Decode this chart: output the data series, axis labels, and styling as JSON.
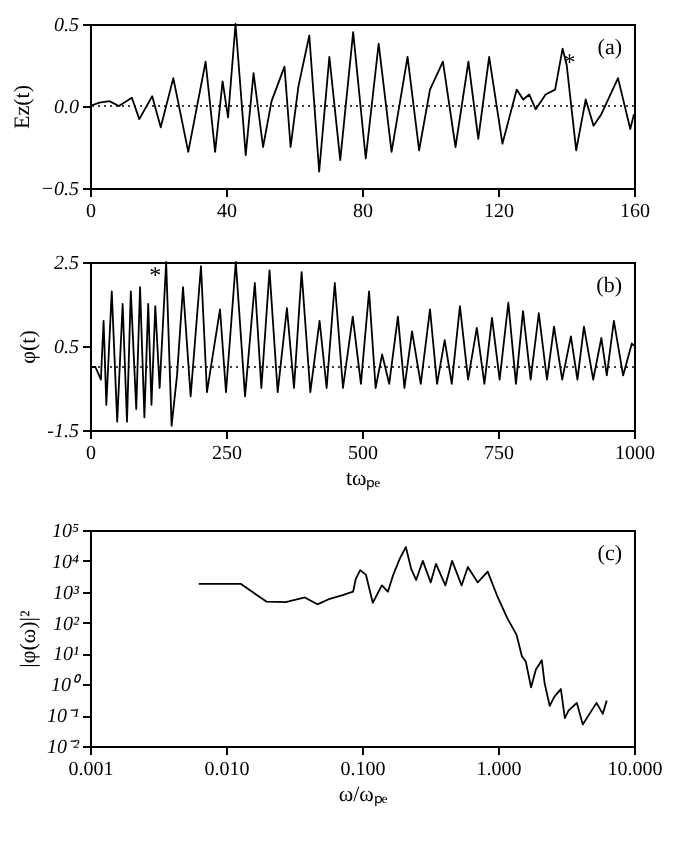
{
  "chart_data": [
    {
      "type": "line",
      "ylabel": "Ez(t)",
      "xlim": [
        0,
        160
      ],
      "xticks": [
        0,
        40,
        80,
        120,
        160
      ],
      "ylim": [
        -0.5,
        0.5
      ],
      "yticks": [
        {
          "value": -0.5,
          "label": "−0.5"
        },
        {
          "value": 0,
          "label": "0.0"
        },
        {
          "value": 0.5,
          "label": "0.5"
        }
      ],
      "ref_lines": [
        {
          "axis": "y",
          "value": 0,
          "line_style": "dotted"
        }
      ],
      "annotations": [
        "(a)",
        {
          "text": "*",
          "x": 141,
          "y": 0.27
        }
      ],
      "series": [
        {
          "color": "#000000",
          "x": [
            0,
            2.8,
            5.7,
            8.5,
            12.3,
            14.5,
            18.3,
            20.8,
            24.5,
            28.9,
            34,
            36.8,
            39,
            40.6,
            42.8,
            45.8,
            48.1,
            50.9,
            53.4,
            57.2,
            59,
            61.3,
            64.5,
            67.4,
            70.4,
            73.6,
            77.4,
            81.1,
            84.9,
            88.7,
            93.4,
            96.8,
            100,
            103.8,
            107.5,
            111.3,
            114.2,
            117.4,
            121.3,
            125.5,
            127.4,
            129.2,
            131.1,
            134,
            136.8,
            139,
            140.2,
            143,
            145.8,
            148.1,
            150.4,
            155.3,
            158.9,
            160
          ],
          "values": [
            0,
            0.02,
            0.03,
            0,
            0.05,
            -0.08,
            0.06,
            -0.13,
            0.17,
            -0.28,
            0.27,
            -0.28,
            0.15,
            -0.07,
            0.5,
            -0.3,
            0.2,
            -0.25,
            0.03,
            0.24,
            -0.25,
            0.12,
            0.43,
            -0.4,
            0.3,
            -0.33,
            0.45,
            -0.32,
            0.38,
            -0.28,
            0.3,
            -0.27,
            0.1,
            0.27,
            -0.25,
            0.27,
            -0.2,
            0.3,
            -0.23,
            0.1,
            0.04,
            0.07,
            -0.02,
            0.07,
            0.1,
            0.35,
            0.25,
            -0.27,
            0.04,
            -0.12,
            -0.05,
            0.17,
            -0.14,
            -0.05
          ]
        }
      ]
    },
    {
      "type": "line",
      "ylabel": "φ(t)",
      "xlabel": "tωₚₑ",
      "xlim": [
        0,
        1000
      ],
      "xticks": [
        0,
        250,
        500,
        750,
        1000
      ],
      "ylim": [
        -1.5,
        2.5
      ],
      "yticks": [
        -1.5,
        0.5,
        2.5
      ],
      "ref_lines": [
        {
          "axis": "y",
          "value": 0,
          "line_style": "dotted"
        }
      ],
      "annotations": [
        "(b)",
        {
          "text": "*",
          "x": 120,
          "y": 2.2
        }
      ],
      "series": [
        {
          "color": "#000000",
          "x": [
            0,
            10,
            20,
            25,
            30,
            40,
            50,
            60,
            68,
            75,
            85,
            92,
            100,
            107,
            113,
            120,
            128,
            140,
            150,
            160,
            171,
            185,
            204,
            215,
            239,
            250,
            268,
            285,
            303,
            315,
            330,
            345,
            362,
            375,
            389,
            405,
            422,
            435,
            450,
            465,
            483,
            498,
            513,
            525,
            537,
            550,
            566,
            578,
            592,
            608,
            625,
            638,
            652,
            665,
            680,
            695,
            711,
            725,
            739,
            753,
            769,
            783,
            796,
            810,
            825,
            840,
            853,
            868,
            884,
            896,
            908,
            925,
            940,
            950,
            963,
            980,
            996,
            1000
          ],
          "values": [
            0,
            0,
            -0.3,
            1.1,
            -0.9,
            1.8,
            -1.3,
            1.5,
            -1.3,
            1.8,
            -1,
            1.9,
            -1.2,
            1.5,
            -0.9,
            1.45,
            -0.5,
            2.5,
            -1.4,
            -0.2,
            1.9,
            -0.7,
            2.4,
            -0.6,
            1.37,
            -0.6,
            2.5,
            -0.7,
            2,
            -0.5,
            2.3,
            -0.6,
            1.4,
            -0.5,
            2.26,
            -0.6,
            1.1,
            -0.5,
            2,
            -0.5,
            1.2,
            -0.4,
            1.8,
            -0.5,
            0.3,
            -0.4,
            1.2,
            -0.5,
            0.85,
            -0.4,
            1.37,
            -0.4,
            0.64,
            -0.4,
            1.45,
            -0.3,
            0.93,
            -0.4,
            1.17,
            -0.3,
            1.53,
            -0.4,
            1.33,
            -0.3,
            1.28,
            -0.3,
            0.96,
            -0.3,
            0.73,
            -0.3,
            0.96,
            -0.3,
            0.69,
            -0.2,
            1.1,
            -0.2,
            0.56,
            0.5
          ]
        }
      ]
    },
    {
      "type": "line",
      "ylabel": "|φ(ω)|²",
      "xlabel": "ω/ωₚₑ",
      "log": "xy",
      "xlim": [
        0.001,
        10
      ],
      "xticks": [
        {
          "value": 0.001,
          "label": "0.001"
        },
        {
          "value": 0.01,
          "label": "0.010"
        },
        {
          "value": 0.1,
          "label": "0.100"
        },
        {
          "value": 1,
          "label": "1.000"
        },
        {
          "value": 10,
          "label": "10.000"
        }
      ],
      "ylim": [
        0.01,
        100000
      ],
      "yticks": [
        {
          "value": 0.01,
          "label": "10⁻²"
        },
        {
          "value": 0.1,
          "label": "10⁻¹"
        },
        {
          "value": 1,
          "label": "10⁰"
        },
        {
          "value": 10,
          "label": "10¹"
        },
        {
          "value": 100,
          "label": "10²"
        },
        {
          "value": 1000,
          "label": "10³"
        },
        {
          "value": 10000,
          "label": "10⁴"
        },
        {
          "value": 100000,
          "label": "10⁵"
        }
      ],
      "annotations": [
        "(c)"
      ],
      "series": [
        {
          "color": "#000000",
          "x": [
            0.0063,
            0.0128,
            0.0198,
            0.0275,
            0.038,
            0.047,
            0.058,
            0.072,
            0.086,
            0.09,
            0.097,
            0.107,
            0.12,
            0.14,
            0.155,
            0.17,
            0.19,
            0.21,
            0.23,
            0.25,
            0.28,
            0.32,
            0.35,
            0.41,
            0.46,
            0.54,
            0.6,
            0.71,
            0.84,
            0.99,
            1.17,
            1.37,
            1.5,
            1.6,
            1.75,
            1.9,
            2.1,
            2.2,
            2.4,
            2.6,
            2.9,
            3.1,
            3.3,
            3.8,
            4.2,
            4.5,
            5.3,
            5.9,
            6.3
          ],
          "values": [
            1800,
            1800,
            480,
            460,
            650,
            390,
            590,
            770,
            1000,
            2600,
            5000,
            3500,
            440,
            1600,
            1000,
            3600,
            12000,
            28000,
            5500,
            2400,
            10000,
            2000,
            8000,
            1600,
            10000,
            1600,
            6300,
            2000,
            4500,
            700,
            140,
            40,
            8,
            5.5,
            0.8,
            3,
            6,
            1.1,
            0.2,
            0.4,
            0.7,
            0.08,
            0.14,
            0.25,
            0.05,
            0.08,
            0.25,
            0.11,
            0.3
          ]
        }
      ]
    }
  ]
}
